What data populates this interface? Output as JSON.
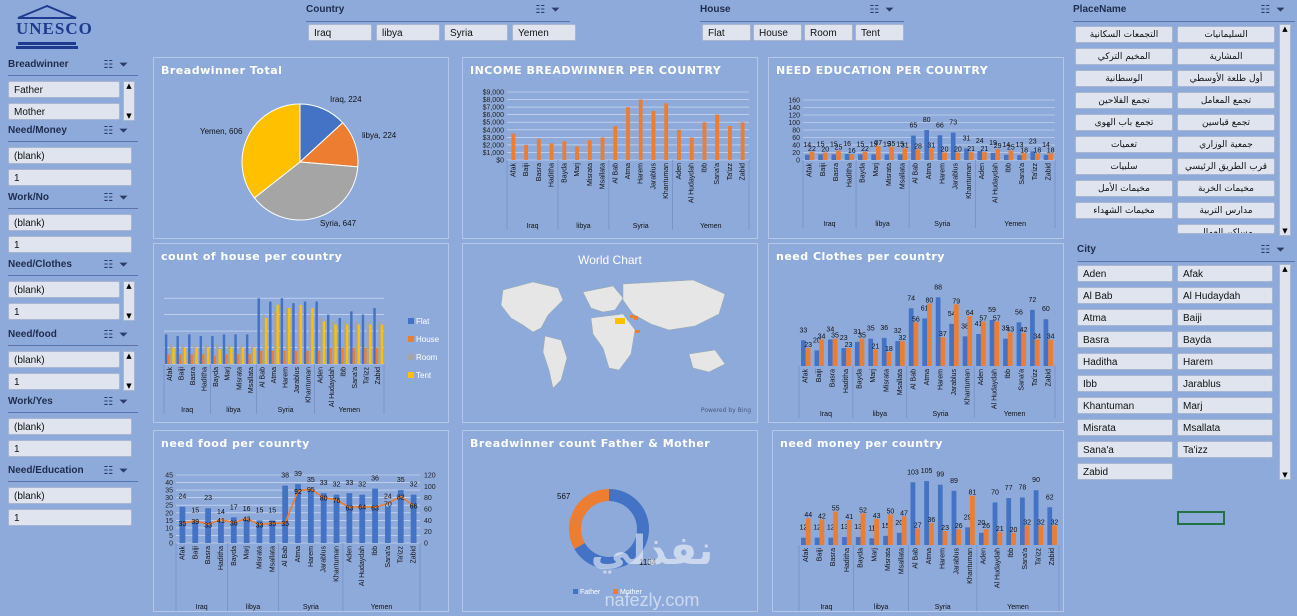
{
  "logo_text": "UNESCO",
  "colors": {
    "bg": "#8eaadb",
    "blue": "#4472c4",
    "orange": "#ed7d31",
    "gray": "#a5a5a5",
    "yellow": "#ffc000",
    "title": "#ffffff"
  },
  "slicers": {
    "country": {
      "title": "Country",
      "items": [
        "Iraq",
        "libya",
        "Syria",
        "Yemen"
      ]
    },
    "house": {
      "title": "House",
      "items": [
        "Flat",
        "House",
        "Room",
        "Tent"
      ]
    },
    "breadwinner": {
      "title": "Breadwinner",
      "items": [
        "Father",
        "Mother"
      ]
    },
    "need_money": {
      "title": "Need/Money",
      "items": [
        "(blank)",
        "1"
      ]
    },
    "work_no": {
      "title": "Work/No",
      "items": [
        "(blank)",
        "1"
      ]
    },
    "need_clothes": {
      "title": "Need/Clothes",
      "items": [
        "(blank)",
        "1"
      ]
    },
    "need_food": {
      "title": "Need/food",
      "items": [
        "(blank)",
        "1"
      ]
    },
    "work_yes": {
      "title": "Work/Yes",
      "items": [
        "(blank)",
        "1"
      ]
    },
    "need_education": {
      "title": "Need/Education",
      "items": [
        "(blank)",
        "1"
      ]
    },
    "placename": {
      "title": "PlaceName",
      "items": [
        "السليمانيات",
        "التجمعات السكانية",
        "المشارية",
        "المخيم التركي",
        "أول طلعة الأوسطي",
        "الوسطانية",
        "تجمع المعامل",
        "تجمع الفلاحين",
        "تجمع قباسين",
        "تجمع باب الهوى",
        "جمعية الوزاري",
        "تعميات",
        "قرب الطريق الرئيسي",
        "سلبيات",
        "مخيمات الخربة",
        "مخيمات الأمل",
        "مدارس التربية",
        "مخيمات الشهداء",
        "مساكن العمال"
      ]
    },
    "city": {
      "title": "City",
      "items": [
        "Aden",
        "Afak",
        "Al Bab",
        "Al Hudaydah",
        "Atma",
        "Baiji",
        "Basra",
        "Bayda",
        "Haditha",
        "Harem",
        "Ibb",
        "Jarablus",
        "Khantuman",
        "Marj",
        "Misrata",
        "Msallata",
        "Sana'a",
        "Ta'izz",
        "Zabid"
      ]
    }
  },
  "charts_meta": {
    "breadwinner_total": {
      "title": "Breadwinner Total"
    },
    "income": {
      "title": "INCOME BREADWINNER PER COUNTRY"
    },
    "education": {
      "title": "NEED EDUCATION PER COUNTRY"
    },
    "house_count": {
      "title": "count of house per country"
    },
    "world": {
      "title": "World Chart",
      "credit": "Powered by Bing"
    },
    "clothes": {
      "title": "need Clothes per country"
    },
    "food": {
      "title": "need food per counrty"
    },
    "fm": {
      "title": "Breadwinner count Father & Mother"
    },
    "money": {
      "title": "need money per country"
    }
  },
  "watermark": {
    "arabic": "نفذلي",
    "latin": "nafezly.com"
  },
  "chart_data": [
    {
      "id": "breadwinner_total",
      "type": "pie",
      "title": "Breadwinner Total",
      "slices": [
        {
          "label": "Iraq",
          "value": 224
        },
        {
          "label": "libya",
          "value": 224
        },
        {
          "label": "Syria",
          "value": 647
        },
        {
          "label": "Yemen",
          "value": 606
        }
      ]
    },
    {
      "id": "income",
      "type": "bar",
      "title": "INCOME BREADWINNER PER COUNTRY",
      "ytick_labels": [
        "$0",
        "$1,000",
        "$2,000",
        "$3,000",
        "$4,000",
        "$5,000",
        "$6,000",
        "$7,000",
        "$8,000",
        "$9,000"
      ],
      "ylim": [
        0,
        9000
      ],
      "categories": [
        "Afak",
        "Baiji",
        "Basra",
        "Haditha",
        "Bayda",
        "Marj",
        "Misrata",
        "Msallata",
        "Al Bab",
        "Atma",
        "Harem",
        "Jarablus",
        "Khantuman",
        "Aden",
        "Al Hudaydah",
        "Ibb",
        "Sana'a",
        "Ta'izz",
        "Zabid"
      ],
      "groups": [
        {
          "label": "Iraq",
          "count": 4
        },
        {
          "label": "libya",
          "count": 4
        },
        {
          "label": "Syria",
          "count": 5
        },
        {
          "label": "Yemen",
          "count": 6
        }
      ],
      "series": [
        {
          "values": [
            3500,
            2000,
            2800,
            2200,
            2500,
            1800,
            2600,
            3000,
            4500,
            7000,
            8000,
            6500,
            7500,
            4000,
            3000,
            5000,
            6000,
            4500,
            5000
          ]
        }
      ]
    },
    {
      "id": "education",
      "type": "bar",
      "title": "NEED EDUCATION PER COUNTRY",
      "yticks": [
        0,
        20,
        40,
        60,
        80,
        100,
        120,
        140,
        160
      ],
      "categories": [
        "Afak",
        "Baiji",
        "Basra",
        "Haditha",
        "Bayda",
        "Marj",
        "Misrata",
        "Msallata",
        "Al Bab",
        "Atma",
        "Harem",
        "Jarablus",
        "Khantuman",
        "Aden",
        "Al Hudaydah",
        "Ibb",
        "Sana'a",
        "Ta'izz",
        "Zabid"
      ],
      "groups": [
        {
          "label": "Iraq",
          "count": 4
        },
        {
          "label": "libya",
          "count": 4
        },
        {
          "label": "Syria",
          "count": 5
        },
        {
          "label": "Yemen",
          "count": 6
        }
      ],
      "series": [
        {
          "values": [
            14,
            15,
            15,
            16,
            15,
            15,
            15,
            15,
            65,
            80,
            66,
            73,
            31,
            24,
            19,
            14,
            13,
            23,
            14
          ]
        },
        {
          "values": [
            22,
            20,
            25,
            16,
            22,
            37,
            35,
            31,
            28,
            31,
            20,
            20,
            21,
            21,
            29,
            25,
            18,
            18,
            18
          ]
        }
      ]
    },
    {
      "id": "house_count",
      "type": "bar",
      "title": "count of house per country",
      "legend": [
        "Flat",
        "House",
        "Room",
        "Tent"
      ],
      "categories": [
        "Afak",
        "Baiji",
        "Basra",
        "Haditha",
        "Bayda",
        "Marj",
        "Misrata",
        "Msallata",
        "Al Bab",
        "Atma",
        "Harem",
        "Jarablus",
        "Khantuman",
        "Aden",
        "Al Hudaydah",
        "Ibb",
        "Sana'a",
        "Ta'izz",
        "Zabid"
      ],
      "groups": [
        {
          "label": "Iraq",
          "count": 4
        },
        {
          "label": "libya",
          "count": 4
        },
        {
          "label": "Syria",
          "count": 5
        },
        {
          "label": "Yemen",
          "count": 6
        }
      ],
      "series": [
        {
          "name": "Flat",
          "values": [
            18,
            17,
            18,
            17,
            17,
            18,
            18,
            18,
            40,
            38,
            40,
            37,
            38,
            38,
            30,
            28,
            32,
            30,
            34
          ]
        },
        {
          "name": "House",
          "values": [
            6,
            6,
            6,
            6,
            5,
            6,
            6,
            6,
            8,
            8,
            8,
            8,
            8,
            8,
            10,
            10,
            10,
            10,
            10
          ]
        },
        {
          "name": "Room",
          "values": [
            12,
            12,
            12,
            12,
            12,
            12,
            12,
            12,
            30,
            32,
            34,
            32,
            30,
            28,
            26,
            26,
            26,
            26,
            26
          ]
        },
        {
          "name": "Tent",
          "values": [
            10,
            10,
            10,
            10,
            9,
            10,
            10,
            10,
            28,
            36,
            34,
            36,
            34,
            26,
            24,
            24,
            24,
            24,
            24
          ]
        }
      ]
    },
    {
      "id": "clothes",
      "type": "bar",
      "title": "need Clothes per country",
      "categories": [
        "Afak",
        "Baiji",
        "Basra",
        "Haditha",
        "Bayda",
        "Marj",
        "Misrata",
        "Msallata",
        "Al Bab",
        "Atma",
        "Harem",
        "Jarablus",
        "Khantuman",
        "Aden",
        "Al Hudaydah",
        "Ibb",
        "Sana'a",
        "Ta'izz",
        "Zabid"
      ],
      "groups": [
        {
          "label": "Iraq",
          "count": 4
        },
        {
          "label": "libya",
          "count": 4
        },
        {
          "label": "Syria",
          "count": 5
        },
        {
          "label": "Yemen",
          "count": 6
        }
      ],
      "series": [
        {
          "values": [
            33,
            20,
            34,
            23,
            31,
            35,
            36,
            32,
            74,
            61,
            88,
            54,
            38,
            41,
            59,
            35,
            56,
            72,
            60
          ]
        },
        {
          "values": [
            23,
            34,
            35,
            23,
            35,
            21,
            18,
            32,
            56,
            80,
            37,
            79,
            64,
            57,
            57,
            43,
            42,
            34,
            34
          ]
        }
      ]
    },
    {
      "id": "food",
      "type": "bar+line",
      "title": "need food per counrty",
      "yticks_left": [
        0,
        5,
        10,
        15,
        20,
        25,
        30,
        35,
        40,
        45
      ],
      "yticks_right": [
        0,
        20,
        40,
        60,
        80,
        100,
        120
      ],
      "categories": [
        "Afak",
        "Baiji",
        "Basra",
        "Haditha",
        "Bayda",
        "Marj",
        "Misrata",
        "Msallata",
        "Al Bab",
        "Atma",
        "Harem",
        "Jarablus",
        "Khantuman",
        "Aden",
        "Al Hudaydah",
        "Ibb",
        "Sana'a",
        "Ta'izz",
        "Zabid"
      ],
      "groups": [
        {
          "label": "Iraq",
          "count": 4
        },
        {
          "label": "libya",
          "count": 4
        },
        {
          "label": "Syria",
          "count": 5
        },
        {
          "label": "Yemen",
          "count": 6
        }
      ],
      "series": [
        {
          "values": [
            24,
            15,
            23,
            14,
            17,
            16,
            15,
            15,
            38,
            39,
            35,
            33,
            32,
            33,
            32,
            36,
            24,
            35,
            32
          ]
        },
        {
          "values": [
            35,
            39,
            33,
            41,
            36,
            43,
            33,
            35,
            35,
            92,
            95,
            80,
            76,
            63,
            64,
            63,
            70,
            82,
            66
          ]
        }
      ]
    },
    {
      "id": "fm",
      "type": "pie",
      "title": "Breadwinner count Father & Mother",
      "legend": [
        "Father",
        "Mother"
      ],
      "slices": [
        {
          "label": "Father",
          "value": 1134
        },
        {
          "label": "Mother",
          "value": 567
        }
      ]
    },
    {
      "id": "money",
      "type": "bar",
      "title": "need money per country",
      "categories": [
        "Afak",
        "Baiji",
        "Basra",
        "Haditha",
        "Bayda",
        "Marj",
        "Misrata",
        "Msallata",
        "Al Bab",
        "Atma",
        "Harem",
        "Jarablus",
        "Khantuman",
        "Aden",
        "Al Hudaydah",
        "Ibb",
        "Sana'a",
        "Ta'izz",
        "Zabid"
      ],
      "groups": [
        {
          "label": "Iraq",
          "count": 4
        },
        {
          "label": "libya",
          "count": 4
        },
        {
          "label": "Syria",
          "count": 5
        },
        {
          "label": "Yemen",
          "count": 6
        }
      ],
      "series": [
        {
          "values": [
            12,
            12,
            12,
            13,
            13,
            11,
            15,
            20,
            103,
            105,
            99,
            89,
            29,
            20,
            70,
            77,
            78,
            90,
            62
          ]
        },
        {
          "values": [
            44,
            42,
            55,
            41,
            52,
            43,
            50,
            47,
            27,
            36,
            23,
            26,
            81,
            26,
            21,
            20,
            32,
            32,
            32
          ]
        }
      ]
    }
  ]
}
